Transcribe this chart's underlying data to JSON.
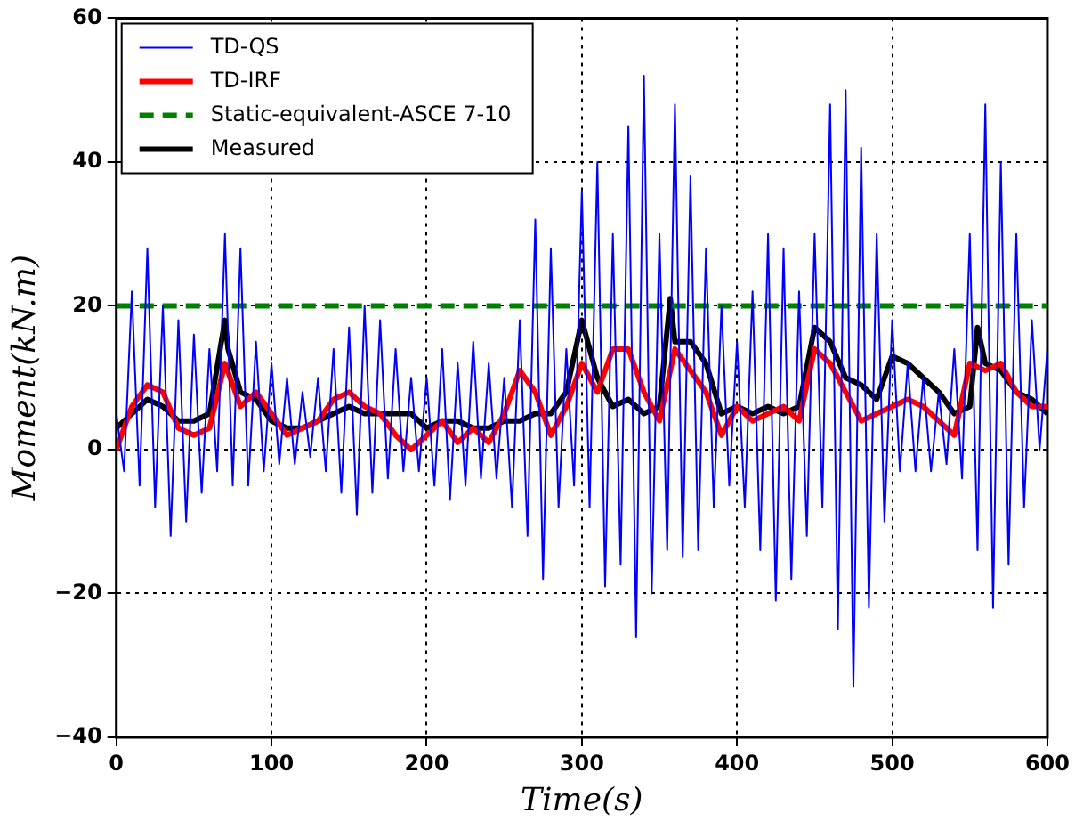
{
  "chart_data": {
    "type": "line",
    "xlabel": "Time(s)",
    "ylabel": "Moment(kN.m)",
    "x": [
      0,
      5,
      10,
      15,
      20,
      25,
      30,
      35,
      40,
      45,
      50,
      55,
      60,
      65,
      70,
      75,
      80,
      85,
      90,
      95,
      100,
      105,
      110,
      115,
      120,
      125,
      130,
      135,
      140,
      145,
      150,
      155,
      160,
      165,
      170,
      175,
      180,
      185,
      190,
      195,
      200,
      205,
      210,
      215,
      220,
      225,
      230,
      235,
      240,
      245,
      250,
      255,
      260,
      265,
      270,
      275,
      280,
      285,
      290,
      295,
      300,
      305,
      310,
      315,
      320,
      325,
      330,
      335,
      340,
      345,
      350,
      355,
      360,
      365,
      370,
      375,
      380,
      385,
      390,
      395,
      400,
      405,
      410,
      415,
      420,
      425,
      430,
      435,
      440,
      445,
      450,
      455,
      460,
      465,
      470,
      475,
      480,
      485,
      490,
      495,
      500,
      505,
      510,
      515,
      520,
      525,
      530,
      535,
      540,
      545,
      550,
      555,
      560,
      565,
      570,
      575,
      580,
      585,
      590,
      595,
      600
    ],
    "series": [
      {
        "name": "TD-QS",
        "color": "#0000ff",
        "line_style": "solid",
        "values": [
          5,
          -3,
          22,
          -5,
          28,
          -8,
          20,
          -12,
          18,
          -10,
          16,
          -6,
          14,
          -3,
          30,
          -5,
          28,
          -5,
          15,
          -3,
          12,
          -2,
          10,
          -2,
          8,
          -1,
          10,
          -3,
          14,
          -6,
          17,
          -9,
          20,
          -6,
          18,
          -4,
          14,
          -3,
          10,
          -3,
          10,
          -5,
          14,
          -7,
          12,
          -5,
          15,
          -4,
          12,
          -4,
          10,
          -8,
          18,
          -12,
          32,
          -18,
          28,
          -8,
          14,
          -5,
          36,
          -8,
          40,
          -19,
          30,
          -16,
          45,
          -26,
          52,
          -20,
          30,
          -14,
          48,
          -15,
          38,
          -14,
          28,
          -8,
          20,
          -5,
          15,
          -8,
          22,
          -14,
          30,
          -21,
          28,
          -18,
          22,
          -12,
          30,
          -8,
          48,
          -25,
          50,
          -33,
          42,
          -22,
          30,
          -10,
          18,
          -3,
          12,
          -3,
          10,
          -3,
          8,
          -2,
          14,
          -4,
          30,
          -14,
          48,
          -22,
          40,
          -16,
          30,
          -8,
          18,
          0,
          14
        ]
      },
      {
        "name": "TD-IRF",
        "color": "#ff0000",
        "line_style": "solid",
        "x": [
          0,
          10,
          20,
          30,
          40,
          50,
          60,
          70,
          75,
          80,
          90,
          100,
          110,
          120,
          130,
          140,
          150,
          160,
          170,
          180,
          190,
          200,
          210,
          220,
          230,
          240,
          250,
          260,
          270,
          280,
          290,
          300,
          310,
          320,
          330,
          340,
          350,
          360,
          370,
          380,
          390,
          400,
          410,
          420,
          430,
          440,
          450,
          460,
          470,
          480,
          490,
          500,
          510,
          520,
          530,
          540,
          550,
          560,
          570,
          580,
          590,
          600
        ],
        "values": [
          0,
          6,
          9,
          8,
          3,
          2,
          3,
          12,
          9,
          6,
          8,
          5,
          2,
          3,
          4,
          7,
          8,
          6,
          5,
          2,
          0,
          2,
          4,
          1,
          3,
          1,
          5,
          11,
          8,
          2,
          6,
          12,
          8,
          14,
          14,
          8,
          4,
          14,
          11,
          8,
          2,
          6,
          4,
          5,
          6,
          4,
          14,
          12,
          8,
          4,
          5,
          6,
          7,
          6,
          4,
          2,
          12,
          11,
          12,
          8,
          6,
          6
        ]
      },
      {
        "name": "Static-equivalent-ASCE 7-10",
        "color": "#008000",
        "line_style": "dashed",
        "x": [
          0,
          600
        ],
        "values": [
          20,
          20
        ]
      },
      {
        "name": "Measured",
        "color": "#000000",
        "line_style": "solid",
        "x": [
          0,
          10,
          20,
          30,
          40,
          50,
          60,
          70,
          72,
          80,
          90,
          100,
          110,
          120,
          130,
          140,
          150,
          160,
          170,
          180,
          190,
          200,
          210,
          220,
          230,
          240,
          250,
          260,
          270,
          280,
          290,
          300,
          310,
          320,
          330,
          340,
          350,
          357,
          360,
          370,
          380,
          390,
          400,
          410,
          420,
          430,
          440,
          450,
          460,
          470,
          480,
          490,
          500,
          510,
          520,
          530,
          540,
          550,
          555,
          560,
          570,
          580,
          590,
          600
        ],
        "values": [
          3,
          5,
          7,
          6,
          4,
          4,
          5,
          18,
          14,
          8,
          7,
          4,
          3,
          3,
          4,
          5,
          6,
          5,
          5,
          5,
          5,
          3,
          4,
          4,
          3,
          3,
          4,
          4,
          5,
          5,
          8,
          18,
          10,
          6,
          7,
          5,
          6,
          21,
          15,
          15,
          12,
          5,
          6,
          5,
          6,
          5,
          6,
          17,
          15,
          10,
          9,
          7,
          13,
          12,
          10,
          8,
          5,
          6,
          17,
          12,
          11,
          8,
          7,
          5
        ]
      }
    ],
    "xlim": [
      0,
      600
    ],
    "xticks": [
      0,
      100,
      200,
      300,
      400,
      500,
      600
    ],
    "ylim": [
      -40,
      60
    ],
    "yticks": [
      -40,
      -20,
      0,
      20,
      40,
      60
    ],
    "grid": true,
    "legend": "top left",
    "marker": "none"
  }
}
